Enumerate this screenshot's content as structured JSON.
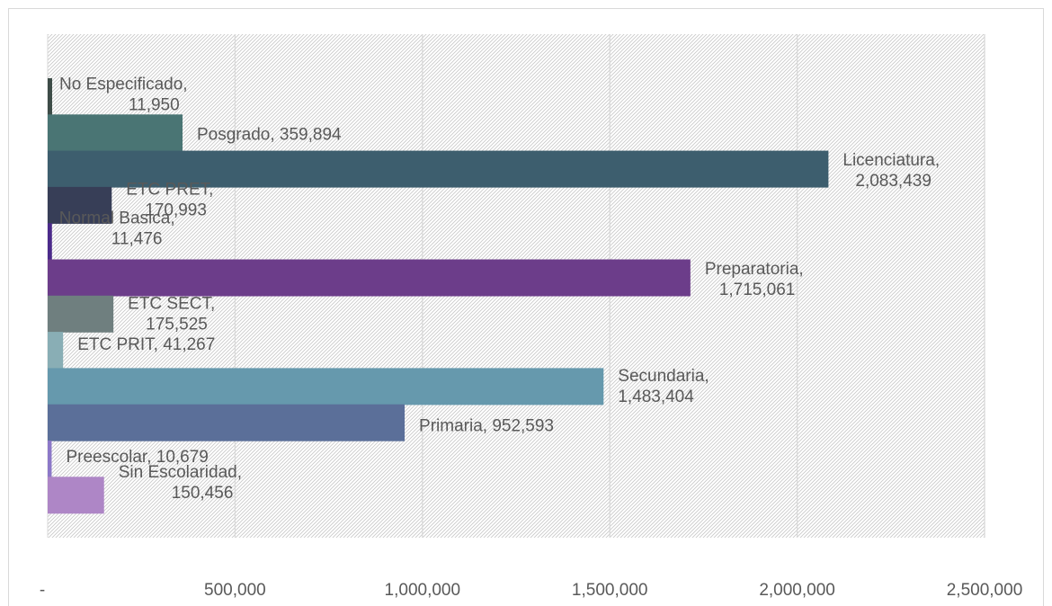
{
  "chart_data": {
    "type": "bar",
    "orientation": "horizontal",
    "title": "",
    "xlabel": "",
    "ylabel": "",
    "xlim": [
      0,
      2500000
    ],
    "x_ticks": [
      0,
      500000,
      1000000,
      1500000,
      2000000,
      2500000
    ],
    "x_tick_labels": [
      "-",
      "500,000",
      "1,000,000",
      "1,500,000",
      "2,000,000",
      "2,500,000"
    ],
    "grid": "vertical",
    "background": "hatched",
    "legend": "none",
    "categories": [
      "No Especificado",
      "Posgrado",
      "Licenciatura",
      "ETC PRET",
      "Normal Basica",
      "Preparatoria",
      "ETC SECT",
      "ETC PRIT",
      "Secundaria",
      "Primaria",
      "Preescolar",
      "Sin Escolaridad"
    ],
    "values": [
      11950,
      359894,
      2083439,
      170993,
      11476,
      1715061,
      175525,
      41267,
      1483404,
      952593,
      10679,
      150456
    ],
    "value_labels": [
      [
        "No Especificado,",
        "11,950"
      ],
      [
        "Posgrado,  359,894"
      ],
      [
        "Licenciatura,",
        "2,083,439"
      ],
      [
        "ETC PRET,",
        "170,993"
      ],
      [
        "Normal Basica,",
        "11,476"
      ],
      [
        "Preparatoria,",
        "1,715,061"
      ],
      [
        "ETC SECT,",
        "175,525"
      ],
      [
        "ETC PRIT,  41,267"
      ],
      [
        "Secundaria,",
        "1,483,404"
      ],
      [
        "Primaria,  952,593"
      ],
      [
        "Preescolar,  10,679"
      ],
      [
        "Sin Escolaridad,",
        "150,456"
      ]
    ],
    "colors": [
      "#3d4c47",
      "#4a7574",
      "#3d5e6e",
      "#373e57",
      "#4b2a8a",
      "#6c3d8a",
      "#6f7f7f",
      "#89aeb5",
      "#6699ad",
      "#5b6f99",
      "#8c78c8",
      "#ae86c6"
    ],
    "grid_color": "#d9d9d9",
    "text_color": "#595959"
  }
}
